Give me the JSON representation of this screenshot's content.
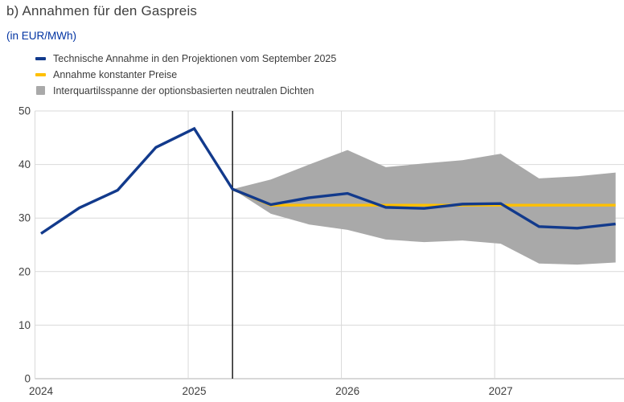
{
  "header": {
    "title": "b) Annahmen für den Gaspreis",
    "unit_label": "(in EUR/MWh)"
  },
  "legend": [
    {
      "label": "Technische Annahme in den Projektionen vom September 2025",
      "color": "#123a8c",
      "marker": "line"
    },
    {
      "label": "Annahme konstanter Preise",
      "color": "#ffc000",
      "marker": "line"
    },
    {
      "label": "Interquartilsspanne der optionsbasierten neutralen Dichten",
      "color": "#a9a9a9",
      "marker": "area"
    }
  ],
  "colors": {
    "technical_line": "#123a8c",
    "constant_line": "#ffc000",
    "band_fill": "#a9a9a9",
    "gridline": "#d9d9d9",
    "baseline": "#b0b0b0",
    "cutoff_line": "#2b2b2b",
    "axis_text": "#3f3f3f",
    "title_text": "#404040",
    "unit_text": "#0033a2"
  },
  "chart_data": {
    "type": "line",
    "title": "b) Annahmen für den Gaspreis",
    "ylabel": "in EUR/MWh",
    "ylim": [
      0,
      50
    ],
    "y_ticks": [
      0,
      10,
      20,
      30,
      40,
      50
    ],
    "x_tick_labels": [
      "2024",
      "2025",
      "2026",
      "2027"
    ],
    "grid": true,
    "legend_position": "top-left",
    "categories": [
      "2024-Q1",
      "2024-Q2",
      "2024-Q3",
      "2024-Q4",
      "2025-Q1",
      "2025-Q2",
      "2025-Q3",
      "2025-Q4",
      "2026-Q1",
      "2026-Q2",
      "2026-Q3",
      "2026-Q4",
      "2027-Q1",
      "2027-Q2",
      "2027-Q3",
      "2027-Q4"
    ],
    "cutoff_x_index": 5,
    "series": [
      {
        "name": "Technische Annahme in den Projektionen vom September 2025",
        "color": "#123a8c",
        "values": [
          27.1,
          31.9,
          35.2,
          43.2,
          46.7,
          35.4,
          32.5,
          33.8,
          34.6,
          32.0,
          31.8,
          32.6,
          32.7,
          28.4,
          28.1,
          28.9
        ]
      },
      {
        "name": "Annahme konstanter Preise",
        "color": "#ffc000",
        "values": [
          null,
          null,
          null,
          null,
          null,
          35.4,
          32.4,
          32.4,
          32.4,
          32.4,
          32.4,
          32.4,
          32.4,
          32.4,
          32.4,
          32.4
        ]
      }
    ],
    "band": {
      "name": "Interquartilsspanne der optionsbasierten neutralen Dichten",
      "color": "#a9a9a9",
      "upper": [
        null,
        null,
        null,
        null,
        null,
        35.4,
        37.2,
        40.0,
        42.7,
        39.5,
        40.2,
        40.8,
        42.0,
        37.4,
        37.8,
        38.5
      ],
      "lower": [
        null,
        null,
        null,
        null,
        null,
        35.4,
        30.8,
        28.8,
        27.8,
        26.0,
        25.5,
        25.8,
        25.2,
        21.5,
        21.3,
        21.7
      ]
    }
  }
}
